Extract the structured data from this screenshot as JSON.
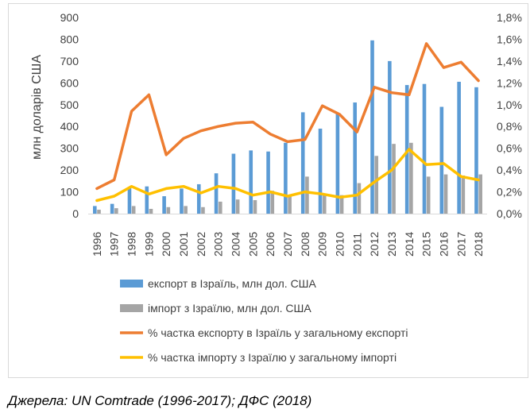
{
  "chart_data": {
    "type": "bar",
    "categories": [
      "1996",
      "1997",
      "1998",
      "1999",
      "2000",
      "2001",
      "2002",
      "2003",
      "2004",
      "2005",
      "2006",
      "2007",
      "2008",
      "2009",
      "2010",
      "2011",
      "2012",
      "2013",
      "2014",
      "2015",
      "2016",
      "2017",
      "2018"
    ],
    "ylabel": "млн доларів США",
    "ylim": [
      0,
      900
    ],
    "y_ticks": [
      "0",
      "100",
      "200",
      "300",
      "400",
      "500",
      "600",
      "700",
      "800",
      "900"
    ],
    "y2lim": [
      0,
      1.8
    ],
    "y2_ticks": [
      "0,0%",
      "0,2%",
      "0,4%",
      "0,6%",
      "0,8%",
      "1,0%",
      "1,2%",
      "1,4%",
      "1,6%",
      "1,8%"
    ],
    "grid": false,
    "legend_position": "bottom",
    "series": [
      {
        "name": "експорт в Ізраїль, млн дол. США",
        "kind": "bar",
        "axis": "left",
        "color": "#5b9bd5",
        "values": [
          35,
          45,
          120,
          125,
          80,
          115,
          135,
          185,
          275,
          290,
          285,
          325,
          465,
          390,
          460,
          510,
          795,
          700,
          590,
          595,
          490,
          605,
          580
        ]
      },
      {
        "name": "імпорт з Ізраїлю, млн дол. США",
        "kind": "bar",
        "axis": "left",
        "color": "#a5a5a5",
        "values": [
          18,
          25,
          35,
          22,
          30,
          35,
          30,
          55,
          65,
          62,
          105,
          85,
          170,
          85,
          85,
          140,
          265,
          320,
          325,
          170,
          180,
          175,
          180
        ]
      },
      {
        "name": "% частка експорту в Ізраїль у загальному експорті",
        "kind": "line",
        "axis": "right",
        "color": "#ed7d31",
        "values": [
          0.23,
          0.31,
          0.94,
          1.09,
          0.54,
          0.69,
          0.76,
          0.8,
          0.83,
          0.84,
          0.73,
          0.66,
          0.68,
          0.99,
          0.91,
          0.75,
          1.16,
          1.11,
          1.09,
          1.56,
          1.34,
          1.39,
          1.22
        ]
      },
      {
        "name": "% частка імпорту з Ізраїлю у загальному імпорті",
        "kind": "line",
        "axis": "right",
        "color": "#ffc000",
        "values": [
          0.12,
          0.16,
          0.25,
          0.18,
          0.23,
          0.25,
          0.19,
          0.25,
          0.23,
          0.17,
          0.2,
          0.16,
          0.2,
          0.18,
          0.15,
          0.17,
          0.29,
          0.4,
          0.59,
          0.45,
          0.46,
          0.34,
          0.31
        ]
      }
    ]
  },
  "source_note": "Джерела: UN Comtrade (1996-2017); ДФС (2018)"
}
